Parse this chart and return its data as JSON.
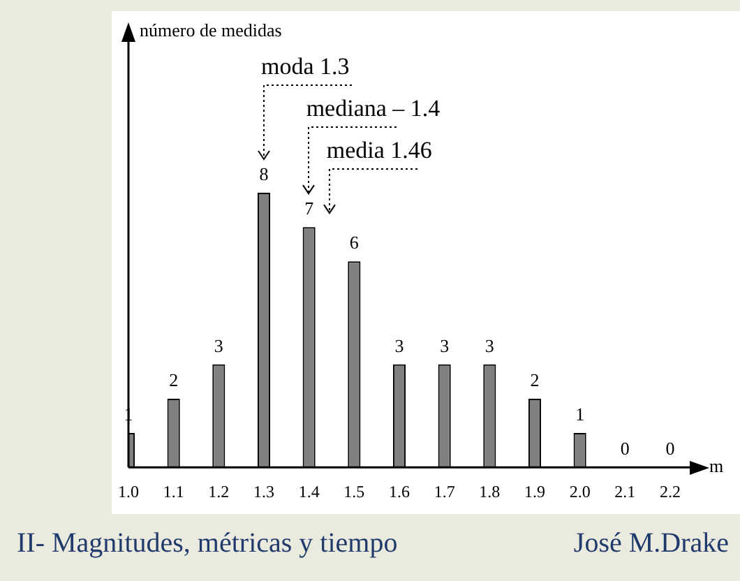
{
  "chart_data": {
    "type": "bar",
    "xlabel": "m",
    "categories": [
      "1.0",
      "1.1",
      "1.2",
      "1.3",
      "1.4",
      "1.5",
      "1.6",
      "1.7",
      "1.8",
      "1.9",
      "2.0",
      "2.1",
      "2.2"
    ],
    "values": [
      1,
      2,
      3,
      8,
      7,
      6,
      3,
      3,
      3,
      2,
      1,
      0,
      0
    ],
    "color": "#808080",
    "data_labels": true,
    "grid": false,
    "legend": false,
    "annotations": [
      "número de medidas",
      "moda 1.3",
      "mediana – 1.4",
      "media 1.46",
      "II- Magnitudes, métricas y tiempo",
      "José M.Drake"
    ]
  }
}
